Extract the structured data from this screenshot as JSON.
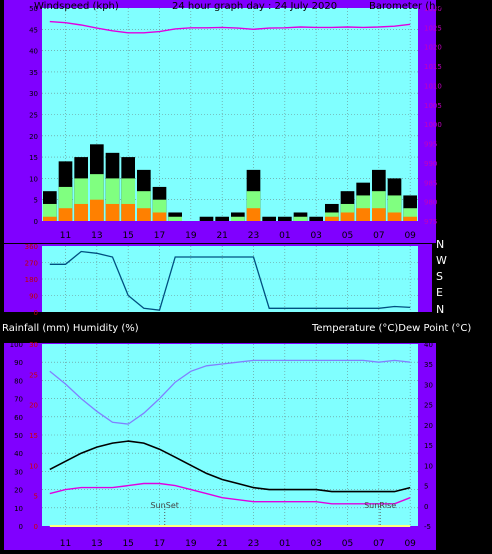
{
  "header": {
    "left": "Windspeed (kph)",
    "center": "24 hour graph day : 24 July 2020",
    "right": "Barometer (hpa)"
  },
  "lower_header": {
    "left": "Rainfall (mm)  Humidity (%)",
    "right": "Temperature (°C)Dew Point (°C)"
  },
  "x_ticks": [
    "11",
    "13",
    "15",
    "17",
    "19",
    "21",
    "23",
    "01",
    "03",
    "05",
    "07",
    "09"
  ],
  "directions": [
    "N",
    "W",
    "S",
    "E",
    "N"
  ],
  "annotations": {
    "sunset": "SunSet",
    "sunrise": "SunRise"
  },
  "colors": {
    "purple_bg": "#8000ff",
    "plot_bg": "#80ffff",
    "barometer": "#e000e0",
    "gust": "#000000",
    "wind_avg": "#80ff80",
    "wind_min": "#ff8000",
    "direction": "#005080",
    "humidity": "#8080ff",
    "temperature": "#000000",
    "dewpoint": "#e000e0",
    "rain": "#ffff80"
  },
  "chart_data": [
    {
      "type": "line",
      "name": "wind-barometer",
      "x": [
        "10:00",
        "11:00",
        "12:00",
        "13:00",
        "14:00",
        "15:00",
        "16:00",
        "17:00",
        "18:00",
        "19:00",
        "20:00",
        "21:00",
        "22:00",
        "23:00",
        "00:00",
        "01:00",
        "02:00",
        "03:00",
        "04:00",
        "05:00",
        "06:00",
        "07:00",
        "08:00",
        "09:00"
      ],
      "series": [
        {
          "axis": "left",
          "values": [
            7,
            14,
            15,
            18,
            16,
            15,
            12,
            8,
            2,
            0,
            1,
            1,
            2,
            12,
            1,
            1,
            2,
            1,
            4,
            7,
            9,
            12,
            10,
            6
          ]
        },
        {
          "axis": "left",
          "values": [
            4,
            8,
            10,
            11,
            10,
            10,
            7,
            5,
            1,
            0,
            0,
            0,
            1,
            7,
            0,
            0,
            1,
            0,
            2,
            4,
            6,
            7,
            6,
            3
          ]
        },
        {
          "axis": "left",
          "values": [
            1,
            3,
            4,
            5,
            4,
            4,
            3,
            2,
            0,
            0,
            0,
            0,
            0,
            3,
            0,
            0,
            0,
            0,
            1,
            2,
            3,
            3,
            2,
            1
          ]
        },
        {
          "axis": "right",
          "values": [
            1026.5,
            1026.2,
            1025.6,
            1024.8,
            1024.1,
            1023.6,
            1023.6,
            1023.9,
            1024.6,
            1024.9,
            1024.9,
            1025.0,
            1024.8,
            1024.5,
            1024.8,
            1024.9,
            1025.1,
            1025.0,
            1025.0,
            1025.1,
            1025.0,
            1025.1,
            1025.3,
            1025.8
          ]
        }
      ],
      "ylim_left": [
        0,
        50
      ],
      "ylim_right": [
        975,
        1030
      ],
      "left_ticks": [
        0,
        5,
        10,
        15,
        20,
        25,
        30,
        35,
        40,
        45,
        50
      ],
      "right_ticks": [
        975,
        980,
        985,
        990,
        995,
        1000,
        1005,
        1010,
        1015,
        1020,
        1025,
        1030
      ],
      "grid": true
    },
    {
      "type": "line",
      "name": "wind-direction",
      "x": [
        "10:00",
        "11:00",
        "12:00",
        "13:00",
        "14:00",
        "15:00",
        "16:00",
        "17:00",
        "18:00",
        "19:00",
        "20:00",
        "21:00",
        "22:00",
        "23:00",
        "00:00",
        "01:00",
        "02:00",
        "03:00",
        "04:00",
        "05:00",
        "06:00",
        "07:00",
        "08:00",
        "09:00"
      ],
      "values": [
        260,
        260,
        330,
        320,
        300,
        90,
        20,
        10,
        300,
        300,
        300,
        300,
        300,
        300,
        20,
        20,
        20,
        20,
        20,
        20,
        20,
        20,
        30,
        25
      ],
      "ylim": [
        0,
        360
      ],
      "ticks": [
        0,
        90,
        180,
        270,
        360
      ],
      "grid": true
    },
    {
      "type": "line",
      "name": "temperature-humidity",
      "x": [
        "10:00",
        "11:00",
        "12:00",
        "13:00",
        "14:00",
        "15:00",
        "16:00",
        "17:00",
        "18:00",
        "19:00",
        "20:00",
        "21:00",
        "22:00",
        "23:00",
        "00:00",
        "01:00",
        "02:00",
        "03:00",
        "04:00",
        "05:00",
        "06:00",
        "07:00",
        "08:00",
        "09:00"
      ],
      "series": [
        {
          "axis": "left",
          "values": [
            85,
            78,
            70,
            63,
            57,
            56,
            62,
            70,
            79,
            85,
            88,
            89,
            90,
            91,
            91,
            91,
            91,
            91,
            91,
            91,
            91,
            90,
            91,
            90
          ]
        },
        {
          "axis": "right",
          "values": [
            9,
            11,
            13,
            14.5,
            15.5,
            16,
            15.5,
            14,
            12,
            10,
            8,
            6.5,
            5.5,
            4.5,
            4,
            4,
            4,
            4,
            3.5,
            3.5,
            3.5,
            3.5,
            3.5,
            4.5
          ]
        },
        {
          "axis": "right",
          "values": [
            3,
            4,
            4.5,
            4.5,
            4.5,
            5,
            5.5,
            5.5,
            5,
            4,
            3,
            2,
            1.5,
            1,
            1,
            1,
            1,
            1,
            0.5,
            0.5,
            0.5,
            0.5,
            0.5,
            2
          ]
        },
        {
          "axis": "red",
          "values": [
            0,
            0,
            0,
            0,
            0,
            0,
            0,
            0,
            0,
            0,
            0,
            0,
            0,
            0,
            0,
            0,
            0,
            0,
            0,
            0,
            0,
            0,
            0,
            0
          ]
        }
      ],
      "ylim_left": [
        0,
        100
      ],
      "ylim_right": [
        -5,
        40
      ],
      "ylim_red": [
        0,
        30
      ],
      "left_ticks": [
        0,
        10,
        20,
        30,
        40,
        50,
        60,
        70,
        80,
        90,
        100
      ],
      "right_ticks": [
        -5,
        0,
        5,
        10,
        15,
        20,
        25,
        30,
        35,
        40
      ],
      "red_ticks": [
        0,
        5,
        10,
        15,
        20,
        25,
        30
      ],
      "markers": [
        {
          "label": "SunSet",
          "x": "17:20"
        },
        {
          "label": "SunRise",
          "x": "07:05"
        }
      ],
      "grid": true
    }
  ]
}
